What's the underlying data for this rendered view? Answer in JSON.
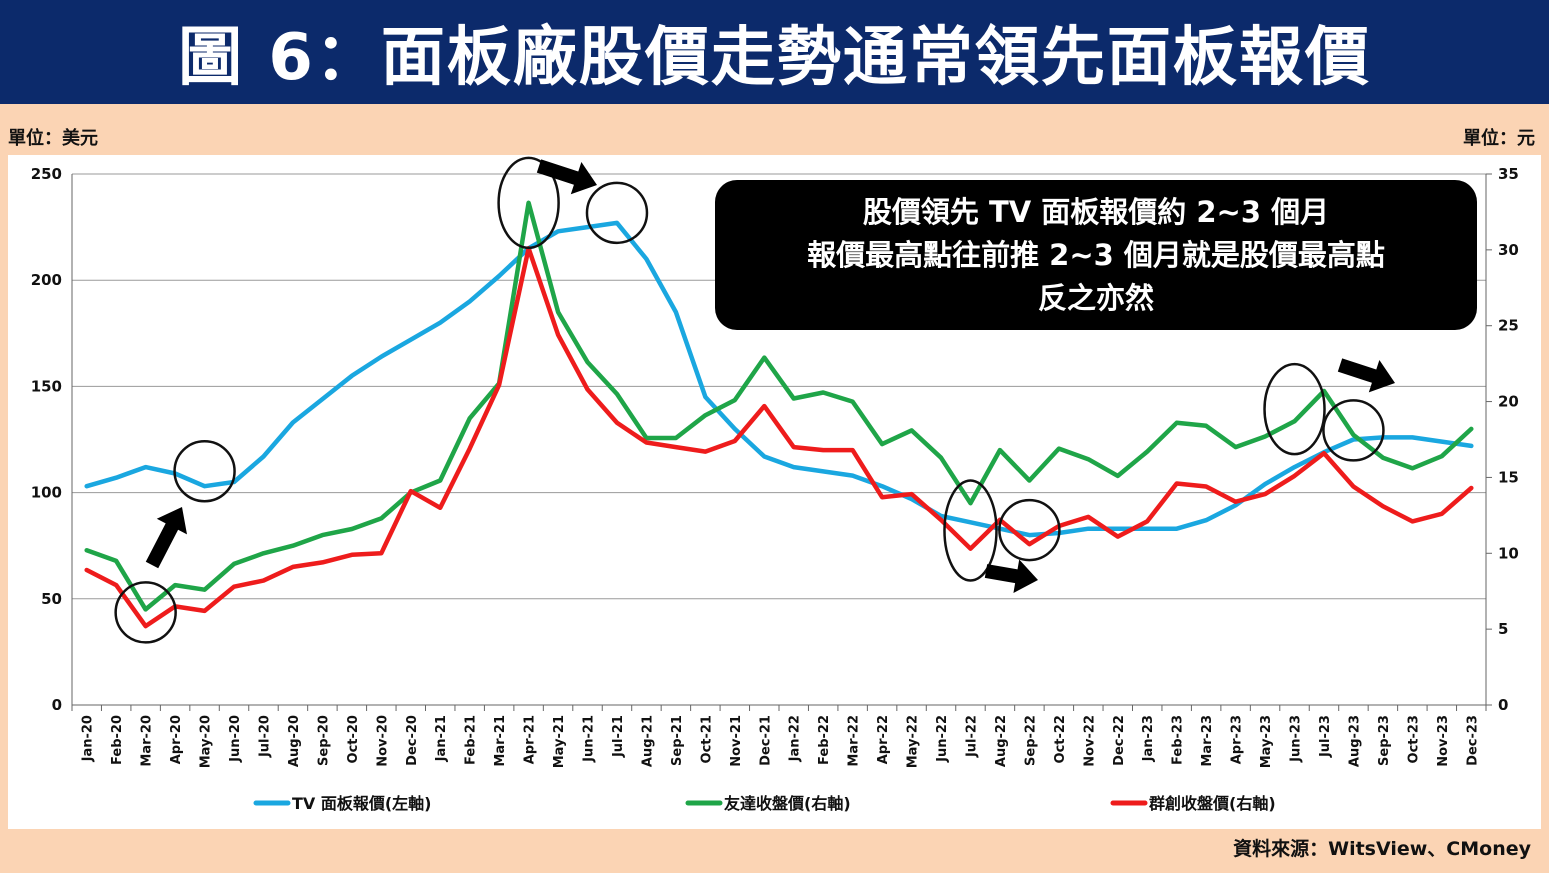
{
  "title": "圖 6：面板廠股價走勢通常領先面板報價",
  "units": {
    "left": "單位：美元",
    "right": "單位：元"
  },
  "source": "資料來源：WitsView、CMoney",
  "annotation": {
    "lines": [
      "股價領先 TV 面板報價約 2~3 個月",
      "報價最高點往前推 2~3 個月就是股價最高點",
      "反之亦然"
    ]
  },
  "chart_data": {
    "type": "line",
    "x": [
      "Jan-20",
      "Feb-20",
      "Mar-20",
      "Apr-20",
      "May-20",
      "Jun-20",
      "Jul-20",
      "Aug-20",
      "Sep-20",
      "Oct-20",
      "Nov-20",
      "Dec-20",
      "Jan-21",
      "Feb-21",
      "Mar-21",
      "Apr-21",
      "May-21",
      "Jun-21",
      "Jul-21",
      "Aug-21",
      "Sep-21",
      "Oct-21",
      "Nov-21",
      "Dec-21",
      "Jan-22",
      "Feb-22",
      "Mar-22",
      "Apr-22",
      "May-22",
      "Jun-22",
      "Jul-22",
      "Aug-22",
      "Sep-22",
      "Oct-22",
      "Nov-22",
      "Dec-22",
      "Jan-23",
      "Feb-23",
      "Mar-23",
      "Apr-23",
      "May-23",
      "Jun-23",
      "Jul-23",
      "Aug-23",
      "Sep-23",
      "Oct-23",
      "Nov-23",
      "Dec-23"
    ],
    "y_left": {
      "ylim": [
        0,
        250
      ],
      "ticks": [
        "0",
        "50",
        "100",
        "150",
        "200",
        "250"
      ]
    },
    "y_right": {
      "ylim": [
        0,
        35
      ],
      "ticks": [
        "0",
        "5",
        "10",
        "15",
        "20",
        "25",
        "30",
        "35"
      ]
    },
    "series": [
      {
        "name": "TV 面板報價(左軸)",
        "axis": "left",
        "color": "#1aa7e0",
        "values": [
          103,
          107,
          112,
          109,
          103,
          105,
          117,
          133,
          144,
          155,
          164,
          172,
          180,
          190,
          202,
          215,
          223,
          225,
          227,
          210,
          185,
          145,
          130,
          117,
          112,
          110,
          108,
          103,
          97,
          89,
          86,
          83,
          80,
          81,
          83,
          83,
          83,
          83,
          87,
          94,
          104,
          112,
          119,
          125,
          126,
          126,
          124,
          122
        ]
      },
      {
        "name": "友達收盤價(右軸)",
        "axis": "right",
        "color": "#1fa548",
        "values": [
          10.2,
          9.5,
          6.3,
          7.9,
          7.6,
          9.3,
          10.0,
          10.5,
          11.2,
          11.6,
          12.3,
          14.0,
          14.8,
          18.9,
          21.2,
          33.1,
          25.9,
          22.6,
          20.5,
          17.6,
          17.6,
          19.1,
          20.1,
          22.9,
          20.2,
          20.6,
          20.0,
          17.2,
          18.1,
          16.3,
          13.3,
          16.8,
          14.8,
          16.9,
          16.2,
          15.1,
          16.7,
          18.6,
          18.4,
          17.0,
          17.7,
          18.7,
          20.7,
          17.8,
          16.3,
          15.6,
          16.4,
          18.2
        ]
      },
      {
        "name": "群創收盤價(右軸)",
        "axis": "right",
        "color": "#ee1c1c",
        "values": [
          8.9,
          7.9,
          5.2,
          6.5,
          6.2,
          7.8,
          8.2,
          9.1,
          9.4,
          9.9,
          10.0,
          14.1,
          13.0,
          16.9,
          21.1,
          30.1,
          24.4,
          20.8,
          18.6,
          17.3,
          17.0,
          16.7,
          17.4,
          19.7,
          17.0,
          16.8,
          16.8,
          13.7,
          13.9,
          12.2,
          10.3,
          12.2,
          10.6,
          11.8,
          12.4,
          11.1,
          12.1,
          14.6,
          14.4,
          13.4,
          13.9,
          15.1,
          16.6,
          14.4,
          13.1,
          12.1,
          12.6,
          14.3
        ]
      }
    ],
    "legend": "bottom",
    "grid": true
  }
}
